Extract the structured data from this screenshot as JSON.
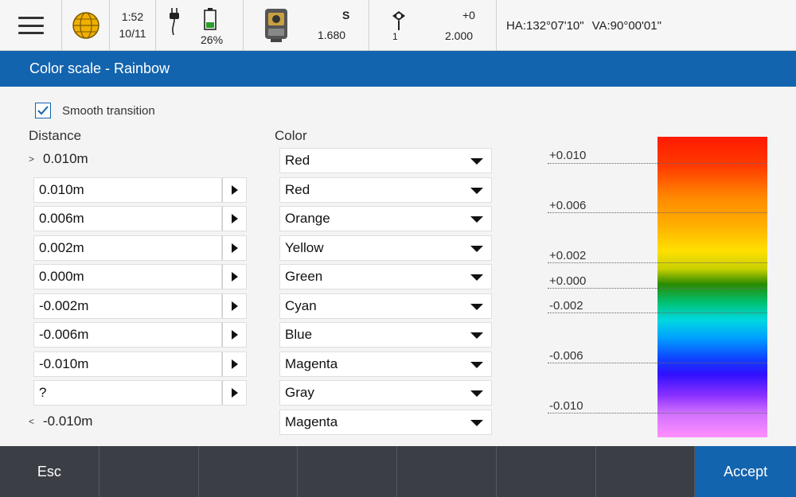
{
  "status": {
    "time": "1:52",
    "date": "10/11",
    "battery": "26%",
    "instrument_label": "S",
    "instrument_value": "1.680",
    "target_number": "1",
    "target_offset": "+0",
    "target_height": "2.000",
    "ha": "HA:132°07'10\"",
    "va": "VA:90°00'01\""
  },
  "title": "Color scale - Rainbow",
  "smooth_label": "Smooth transition",
  "smooth_checked": true,
  "headers": {
    "distance": "Distance",
    "color": "Color"
  },
  "upper_bound": {
    "symbol": ">",
    "value": "0.010m"
  },
  "lower_bound": {
    "symbol": "<",
    "value": "-0.010m"
  },
  "distances": [
    "0.010m",
    "0.006m",
    "0.002m",
    "0.000m",
    "-0.002m",
    "-0.006m",
    "-0.010m",
    "?"
  ],
  "colors": [
    "Red",
    "Red",
    "Orange",
    "Yellow",
    "Green",
    "Cyan",
    "Blue",
    "Magenta",
    "Gray",
    "Magenta"
  ],
  "scale_labels": [
    "+0.010",
    "+0.006",
    "+0.002",
    "+0.000",
    "-0.002",
    "-0.006",
    "-0.010"
  ],
  "footer": {
    "esc": "Esc",
    "accept": "Accept"
  }
}
